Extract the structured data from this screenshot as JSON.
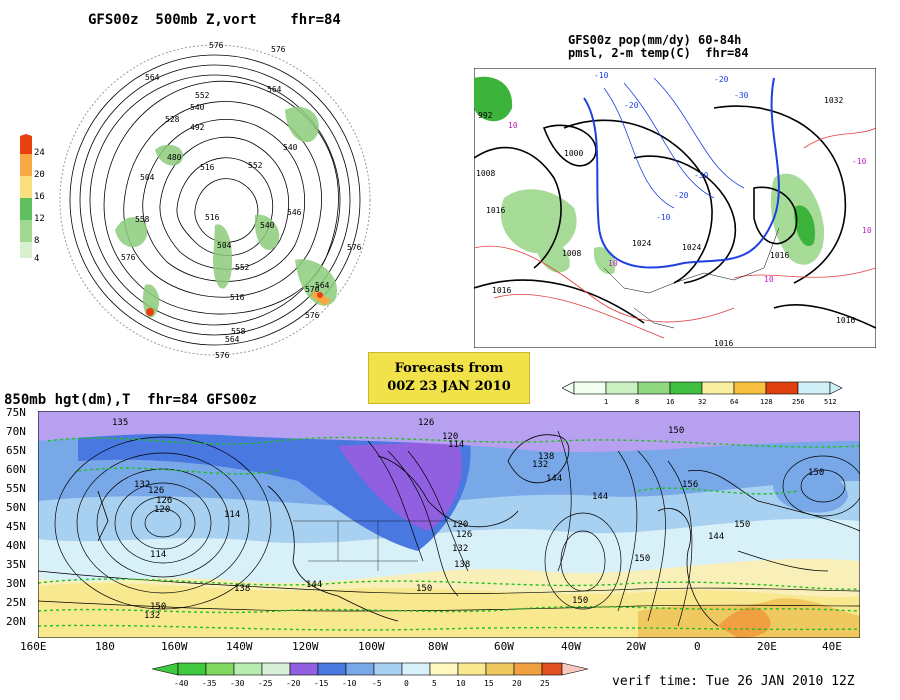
{
  "polar_panel": {
    "title": "GFS00z  500mb Z,vort    fhr=84",
    "legend_levels": [
      "24",
      "20",
      "16",
      "12",
      "8",
      "4"
    ],
    "contour_labels": [
      "576",
      "564",
      "552",
      "540",
      "528",
      "516",
      "504",
      "492",
      "480",
      "552",
      "540",
      "576",
      "564",
      "558",
      "504",
      "516",
      "540",
      "546",
      "576",
      "552",
      "564",
      "570",
      "516",
      "564",
      "576",
      "576",
      "576",
      "558"
    ]
  },
  "pmsl_panel": {
    "title_line1": "GFS00z pop(mm/dy) 60-84h",
    "title_line2": "pmsl, 2-m temp(C)  fhr=84",
    "pressure_labels": [
      "992",
      "1000",
      "1008",
      "1016",
      "1024",
      "1032",
      "1016",
      "1008",
      "1016",
      "1016",
      "1024",
      "1016"
    ],
    "temp_labels": [
      "-10",
      "-20",
      "-30",
      "-20",
      "-10",
      "10",
      "10",
      "-10",
      "10",
      "-20",
      "-30",
      "10"
    ],
    "colorbar_labels": [
      "1",
      "8",
      "16",
      "32",
      "64",
      "128",
      "256",
      "512"
    ]
  },
  "forecast_box": {
    "line1": "Forecasts from",
    "line2": "00Z 23 JAN 2010"
  },
  "h850_panel": {
    "title": "850mb hgt(dm),T  fhr=84 GFS00z",
    "lat_labels": [
      "75N",
      "70N",
      "65N",
      "60N",
      "55N",
      "50N",
      "45N",
      "40N",
      "35N",
      "30N",
      "25N",
      "20N"
    ],
    "lon_labels": [
      "160E",
      "180",
      "160W",
      "140W",
      "120W",
      "100W",
      "80W",
      "60W",
      "40W",
      "20W",
      "0",
      "20E",
      "40E"
    ],
    "height_labels": [
      "135",
      "126",
      "114",
      "132",
      "126",
      "120",
      "114",
      "132",
      "138",
      "150",
      "144",
      "126",
      "114",
      "120",
      "120",
      "126",
      "132",
      "138",
      "144",
      "150",
      "156",
      "150",
      "144",
      "150",
      "132",
      "138",
      "144",
      "150",
      "150",
      "150"
    ],
    "colorbar_labels": [
      "-40",
      "-35",
      "-30",
      "-25",
      "-20",
      "-15",
      "-10",
      "-5",
      "0",
      "5",
      "10",
      "15",
      "20",
      "25"
    ],
    "verif_time": "verif time: Tue 26 JAN 2010 12Z"
  },
  "colors": {
    "pop_scale": [
      "#f0fff0",
      "#c8f0c0",
      "#90d880",
      "#40c040",
      "#f8f0a0",
      "#f8c040",
      "#f08018",
      "#e04010",
      "#d0f0f8"
    ],
    "temp_scale": [
      "#40c840",
      "#80d860",
      "#b8ecb0",
      "#d8f0d8",
      "#9060e0",
      "#4878e0",
      "#78a8e8",
      "#a8d0f0",
      "#d8f0f8",
      "#fff8c0",
      "#f8e890",
      "#f0c860",
      "#f0a040",
      "#e05020",
      "#f8c8c0"
    ],
    "vort_scale": [
      "#e84010",
      "#f8a840",
      "#f8e080",
      "#60c060",
      "#a0d890",
      "#d8f0d0"
    ]
  }
}
